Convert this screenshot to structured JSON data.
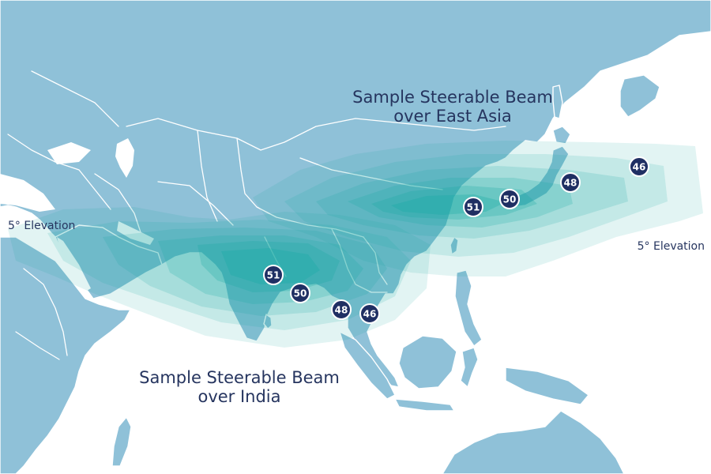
{
  "beams": {
    "east_asia": {
      "line1": "Sample Steerable Beam",
      "line2": "over East Asia",
      "contour_color": "#0fa8a0"
    },
    "india": {
      "line1": "Sample Steerable Beam",
      "line2": "over India",
      "contour_color": "#0fa8a0"
    }
  },
  "elevation_labels": {
    "west": "5° Elevation",
    "east": "5° Elevation"
  },
  "contour_values": {
    "india": [
      "51",
      "50",
      "48",
      "46"
    ],
    "east_asia": [
      "51",
      "50",
      "48",
      "46"
    ]
  },
  "colors": {
    "land": "#8fc1d8",
    "ocean": "#ffffff",
    "badge": "#1f2f63",
    "text": "#26355f"
  }
}
